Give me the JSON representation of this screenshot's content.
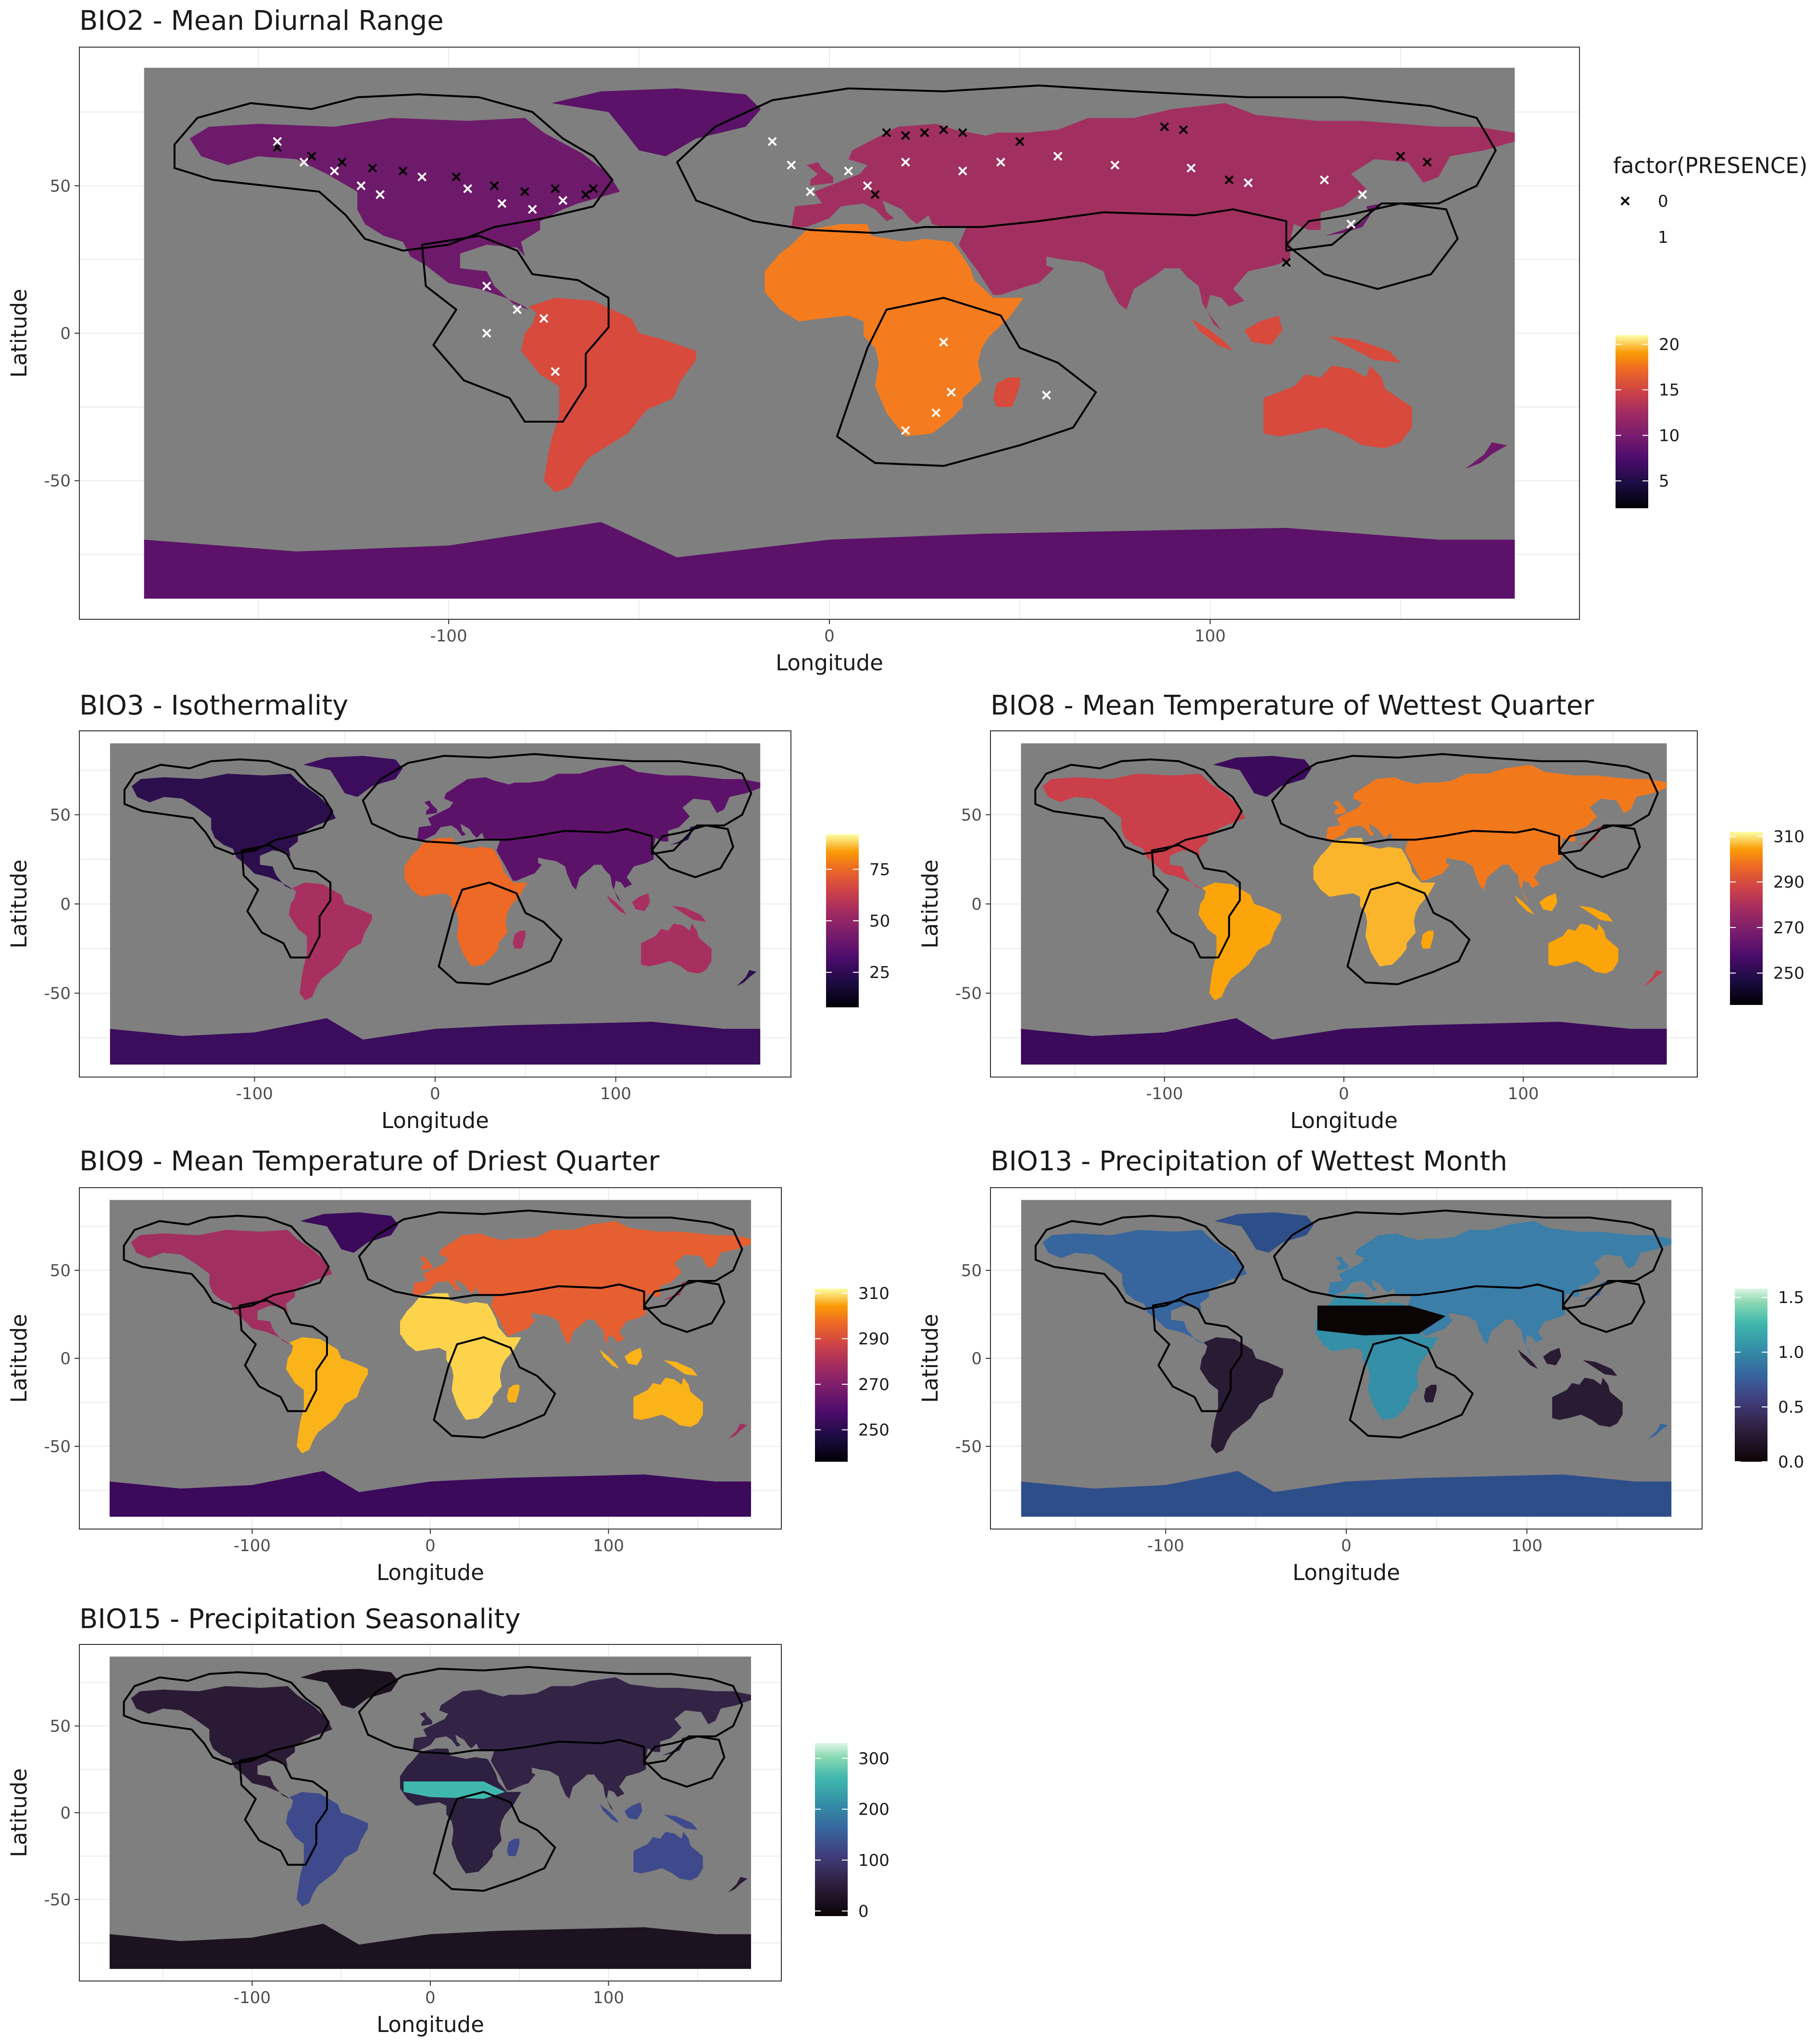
{
  "figure": {
    "x_label": "Longitude",
    "y_label": "Latitude",
    "presence_legend": {
      "title": "factor(PRESENCE)",
      "entries": [
        "0",
        "1"
      ]
    }
  },
  "chart_data": [
    {
      "type": "heatmap",
      "id": "bio2",
      "title": "BIO2 - Mean Diurnal Range",
      "xlabel": "Longitude",
      "ylabel": "Latitude",
      "xlim": [
        -197,
        197
      ],
      "ylim": [
        -97,
        97
      ],
      "x_ticks": [
        -100,
        0,
        100
      ],
      "y_ticks": [
        -50,
        0,
        50
      ],
      "grid": true,
      "colorbar": {
        "palette": "inferno",
        "ticks": [
          5,
          10,
          15,
          20
        ],
        "range": [
          2,
          21
        ]
      },
      "presence_points": [
        {
          "lon": -145,
          "lat": 63,
          "p": 0
        },
        {
          "lon": -136,
          "lat": 60,
          "p": 0
        },
        {
          "lon": -128,
          "lat": 58,
          "p": 0
        },
        {
          "lon": -120,
          "lat": 56,
          "p": 0
        },
        {
          "lon": -112,
          "lat": 55,
          "p": 0
        },
        {
          "lon": -98,
          "lat": 53,
          "p": 0
        },
        {
          "lon": -88,
          "lat": 50,
          "p": 0
        },
        {
          "lon": -80,
          "lat": 48,
          "p": 0
        },
        {
          "lon": -72,
          "lat": 49,
          "p": 0
        },
        {
          "lon": -64,
          "lat": 47,
          "p": 0
        },
        {
          "lon": -62,
          "lat": 49,
          "p": 0
        },
        {
          "lon": 15,
          "lat": 68,
          "p": 0
        },
        {
          "lon": 20,
          "lat": 67,
          "p": 0
        },
        {
          "lon": 25,
          "lat": 68,
          "p": 0
        },
        {
          "lon": 30,
          "lat": 69,
          "p": 0
        },
        {
          "lon": 35,
          "lat": 68,
          "p": 0
        },
        {
          "lon": 12,
          "lat": 47,
          "p": 0
        },
        {
          "lon": 50,
          "lat": 65,
          "p": 0
        },
        {
          "lon": 88,
          "lat": 70,
          "p": 0
        },
        {
          "lon": 93,
          "lat": 69,
          "p": 0
        },
        {
          "lon": 105,
          "lat": 52,
          "p": 0
        },
        {
          "lon": 150,
          "lat": 60,
          "p": 0
        },
        {
          "lon": 157,
          "lat": 58,
          "p": 0
        },
        {
          "lon": 120,
          "lat": 24,
          "p": 0
        },
        {
          "lon": -145,
          "lat": 65,
          "p": 1
        },
        {
          "lon": -138,
          "lat": 58,
          "p": 1
        },
        {
          "lon": -130,
          "lat": 55,
          "p": 1
        },
        {
          "lon": -123,
          "lat": 50,
          "p": 1
        },
        {
          "lon": -118,
          "lat": 47,
          "p": 1
        },
        {
          "lon": -107,
          "lat": 53,
          "p": 1
        },
        {
          "lon": -95,
          "lat": 49,
          "p": 1
        },
        {
          "lon": -86,
          "lat": 44,
          "p": 1
        },
        {
          "lon": -78,
          "lat": 42,
          "p": 1
        },
        {
          "lon": -70,
          "lat": 45,
          "p": 1
        },
        {
          "lon": -90,
          "lat": 16,
          "p": 1
        },
        {
          "lon": -82,
          "lat": 8,
          "p": 1
        },
        {
          "lon": -75,
          "lat": 5,
          "p": 1
        },
        {
          "lon": -90,
          "lat": 0,
          "p": 1
        },
        {
          "lon": -72,
          "lat": -13,
          "p": 1
        },
        {
          "lon": -15,
          "lat": 65,
          "p": 1
        },
        {
          "lon": -10,
          "lat": 57,
          "p": 1
        },
        {
          "lon": -5,
          "lat": 48,
          "p": 1
        },
        {
          "lon": 5,
          "lat": 55,
          "p": 1
        },
        {
          "lon": 10,
          "lat": 50,
          "p": 1
        },
        {
          "lon": 20,
          "lat": 58,
          "p": 1
        },
        {
          "lon": 35,
          "lat": 55,
          "p": 1
        },
        {
          "lon": 45,
          "lat": 58,
          "p": 1
        },
        {
          "lon": 60,
          "lat": 60,
          "p": 1
        },
        {
          "lon": 75,
          "lat": 57,
          "p": 1
        },
        {
          "lon": 95,
          "lat": 56,
          "p": 1
        },
        {
          "lon": 110,
          "lat": 51,
          "p": 1
        },
        {
          "lon": 130,
          "lat": 52,
          "p": 1
        },
        {
          "lon": 140,
          "lat": 47,
          "p": 1
        },
        {
          "lon": 137,
          "lat": 37,
          "p": 1
        },
        {
          "lon": 30,
          "lat": -3,
          "p": 1
        },
        {
          "lon": 32,
          "lat": -20,
          "p": 1
        },
        {
          "lon": 28,
          "lat": -27,
          "p": 1
        },
        {
          "lon": 20,
          "lat": -33,
          "p": 1
        },
        {
          "lon": 57,
          "lat": -21,
          "p": 1
        }
      ]
    },
    {
      "type": "heatmap",
      "id": "bio3",
      "title": "BIO3 - Isothermality",
      "xlabel": "Longitude",
      "ylabel": "Latitude",
      "xlim": [
        -197,
        197
      ],
      "ylim": [
        -97,
        97
      ],
      "x_ticks": [
        -100,
        0,
        100
      ],
      "y_ticks": [
        -50,
        0,
        50
      ],
      "grid": true,
      "colorbar": {
        "palette": "inferno",
        "ticks": [
          25,
          50,
          75
        ],
        "range": [
          8,
          92
        ]
      }
    },
    {
      "type": "heatmap",
      "id": "bio8",
      "title": "BIO8 - Mean Temperature of Wettest Quarter",
      "xlabel": "Longitude",
      "ylabel": "Latitude",
      "xlim": [
        -197,
        197
      ],
      "ylim": [
        -97,
        97
      ],
      "x_ticks": [
        -100,
        0,
        100
      ],
      "y_ticks": [
        -50,
        0,
        50
      ],
      "grid": true,
      "colorbar": {
        "palette": "inferno",
        "ticks": [
          250,
          270,
          290,
          310
        ],
        "range": [
          236,
          312
        ]
      }
    },
    {
      "type": "heatmap",
      "id": "bio9",
      "title": "BIO9 - Mean Temperature of Driest Quarter",
      "xlabel": "Longitude",
      "ylabel": "Latitude",
      "xlim": [
        -197,
        197
      ],
      "ylim": [
        -97,
        97
      ],
      "x_ticks": [
        -100,
        0,
        100
      ],
      "y_ticks": [
        -50,
        0,
        50
      ],
      "grid": true,
      "colorbar": {
        "palette": "inferno",
        "ticks": [
          250,
          270,
          290,
          310
        ],
        "range": [
          236,
          312
        ]
      }
    },
    {
      "type": "heatmap",
      "id": "bio13",
      "title": "BIO13 - Precipitation of Wettest Month",
      "xlabel": "Longitude",
      "ylabel": "Latitude",
      "xlim": [
        -197,
        197
      ],
      "ylim": [
        -97,
        97
      ],
      "x_ticks": [
        -100,
        0,
        100
      ],
      "y_ticks": [
        -50,
        0,
        50
      ],
      "grid": true,
      "colorbar": {
        "palette": "mako",
        "ticks": [
          0.0,
          0.5,
          1.0,
          1.5
        ],
        "tick_labels": [
          "0.0",
          "0.5",
          "1.0",
          "1.5"
        ],
        "range": [
          0,
          1.58
        ]
      }
    },
    {
      "type": "heatmap",
      "id": "bio15",
      "title": "BIO15 - Precipitation Seasonality",
      "xlabel": "Longitude",
      "ylabel": "Latitude",
      "xlim": [
        -197,
        197
      ],
      "ylim": [
        -97,
        97
      ],
      "x_ticks": [
        -100,
        0,
        100
      ],
      "y_ticks": [
        -50,
        0,
        50
      ],
      "grid": true,
      "colorbar": {
        "palette": "mako",
        "ticks": [
          0,
          100,
          200,
          300
        ],
        "range": [
          -10,
          330
        ]
      }
    }
  ]
}
